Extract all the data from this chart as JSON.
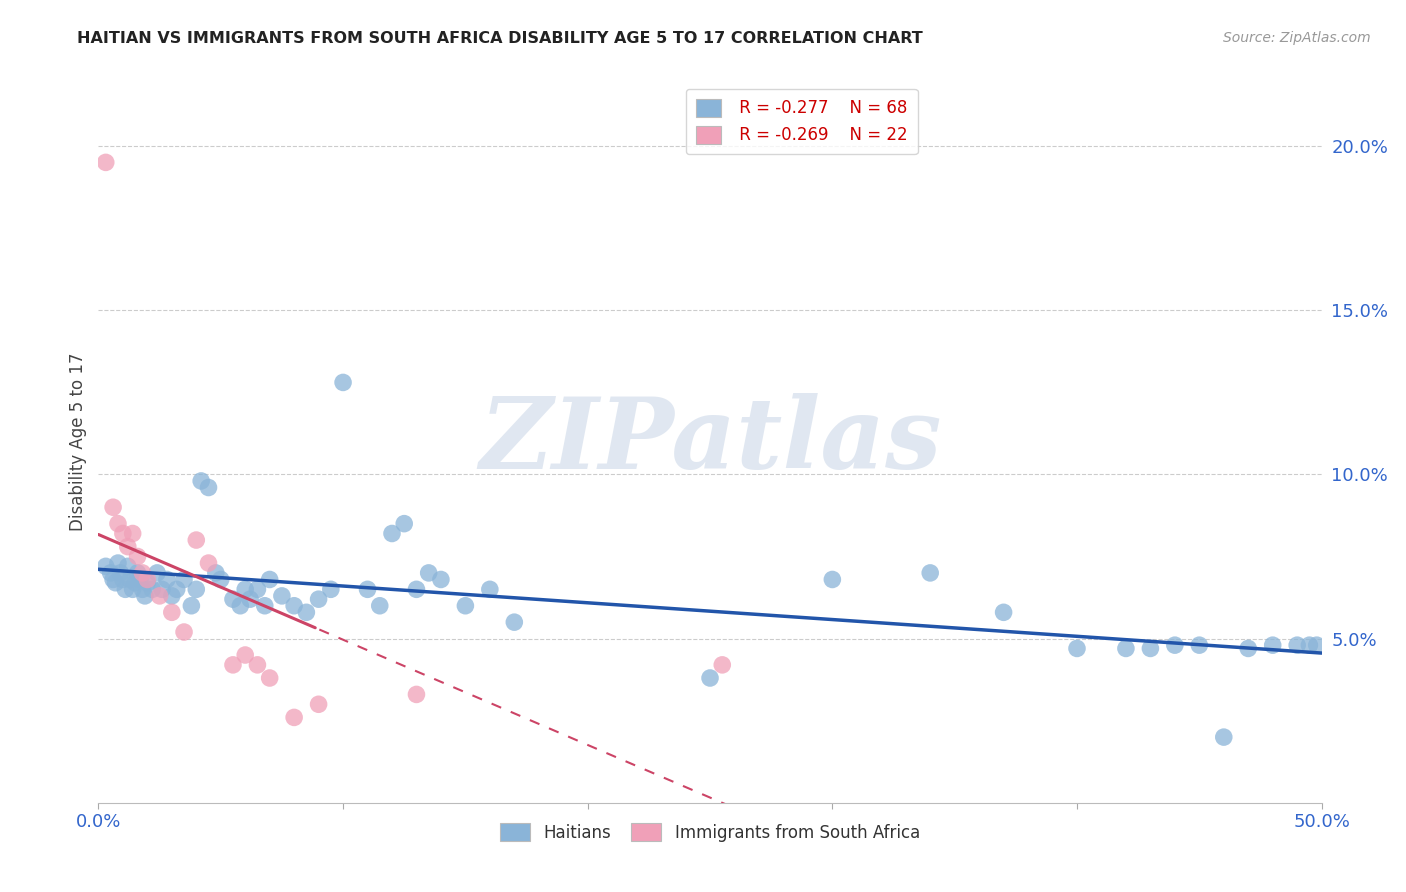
{
  "title": "HAITIAN VS IMMIGRANTS FROM SOUTH AFRICA DISABILITY AGE 5 TO 17 CORRELATION CHART",
  "source": "Source: ZipAtlas.com",
  "ylabel": "Disability Age 5 to 17",
  "xlim": [
    0.0,
    0.5
  ],
  "ylim": [
    0.0,
    0.22
  ],
  "xticks": [
    0.0,
    0.1,
    0.2,
    0.3,
    0.4,
    0.5
  ],
  "xticklabels": [
    "0.0%",
    "",
    "",
    "",
    "",
    "50.0%"
  ],
  "yticks_right": [
    0.05,
    0.1,
    0.15,
    0.2
  ],
  "ytick_labels_right": [
    "5.0%",
    "10.0%",
    "15.0%",
    "20.0%"
  ],
  "grid_color": "#cccccc",
  "background_color": "#ffffff",
  "watermark": "ZIPatlas",
  "legend_r1": "R = -0.277",
  "legend_n1": "N = 68",
  "legend_r2": "R = -0.269",
  "legend_n2": "N = 22",
  "blue_color": "#8ab4d8",
  "pink_color": "#f0a0b8",
  "blue_line_color": "#2255aa",
  "pink_line_color": "#cc4466",
  "haitians_x": [
    0.003,
    0.005,
    0.006,
    0.007,
    0.008,
    0.009,
    0.01,
    0.011,
    0.012,
    0.013,
    0.014,
    0.015,
    0.016,
    0.017,
    0.018,
    0.019,
    0.02,
    0.022,
    0.024,
    0.026,
    0.028,
    0.03,
    0.032,
    0.035,
    0.038,
    0.04,
    0.042,
    0.045,
    0.048,
    0.05,
    0.055,
    0.058,
    0.06,
    0.062,
    0.065,
    0.068,
    0.07,
    0.075,
    0.08,
    0.085,
    0.09,
    0.095,
    0.1,
    0.11,
    0.115,
    0.12,
    0.125,
    0.13,
    0.135,
    0.14,
    0.15,
    0.16,
    0.17,
    0.25,
    0.3,
    0.34,
    0.37,
    0.4,
    0.42,
    0.43,
    0.44,
    0.45,
    0.46,
    0.47,
    0.48,
    0.49,
    0.495,
    0.498
  ],
  "haitians_y": [
    0.072,
    0.07,
    0.068,
    0.067,
    0.073,
    0.07,
    0.068,
    0.065,
    0.072,
    0.068,
    0.065,
    0.067,
    0.07,
    0.068,
    0.065,
    0.063,
    0.067,
    0.065,
    0.07,
    0.065,
    0.068,
    0.063,
    0.065,
    0.068,
    0.06,
    0.065,
    0.098,
    0.096,
    0.07,
    0.068,
    0.062,
    0.06,
    0.065,
    0.062,
    0.065,
    0.06,
    0.068,
    0.063,
    0.06,
    0.058,
    0.062,
    0.065,
    0.128,
    0.065,
    0.06,
    0.082,
    0.085,
    0.065,
    0.07,
    0.068,
    0.06,
    0.065,
    0.055,
    0.038,
    0.068,
    0.07,
    0.058,
    0.047,
    0.047,
    0.047,
    0.048,
    0.048,
    0.02,
    0.047,
    0.048,
    0.048,
    0.048,
    0.048
  ],
  "sa_x": [
    0.003,
    0.006,
    0.008,
    0.01,
    0.012,
    0.014,
    0.016,
    0.018,
    0.02,
    0.025,
    0.03,
    0.035,
    0.04,
    0.045,
    0.055,
    0.06,
    0.065,
    0.07,
    0.08,
    0.09,
    0.13,
    0.255
  ],
  "sa_y": [
    0.195,
    0.09,
    0.085,
    0.082,
    0.078,
    0.082,
    0.075,
    0.07,
    0.068,
    0.063,
    0.058,
    0.052,
    0.08,
    0.073,
    0.042,
    0.045,
    0.042,
    0.038,
    0.026,
    0.03,
    0.033,
    0.042
  ]
}
